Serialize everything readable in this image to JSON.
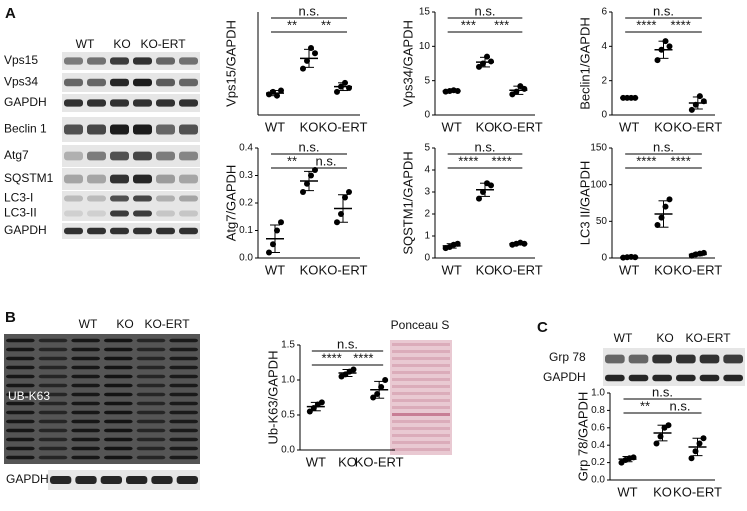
{
  "panel_labels": [
    "A",
    "B",
    "C"
  ],
  "blots": [
    {
      "lanes": [
        "WT",
        "KO",
        "KO-ERT"
      ],
      "rows": [
        "Vps15",
        "Vps34",
        "GAPDH",
        "Beclin 1",
        "Atg7",
        "SQSTM1",
        "LC3-I",
        "LC3-II",
        "GAPDH"
      ]
    },
    {
      "lanes": [
        "WT",
        "KO",
        "KO-ERT"
      ],
      "rows": [
        "UB-K63",
        "GAPDH"
      ]
    },
    {
      "lanes": [
        "WT",
        "KO",
        "KO-ERT"
      ],
      "rows": [
        "Grp 78",
        "GAPDH"
      ]
    }
  ],
  "ponceau_label": "Ponceau S",
  "chart_data": [
    {
      "type": "dot",
      "y_label": "Vps15/GAPDH",
      "categories": [
        "WT",
        "KO",
        "KO-ERT"
      ],
      "ylim": [
        0,
        4
      ],
      "values": [
        [
          0.8,
          0.9,
          0.75,
          0.95
        ],
        [
          1.8,
          2.1,
          2.6,
          2.4
        ],
        [
          0.9,
          1.1,
          1.25,
          1.05
        ]
      ],
      "means": [
        0.85,
        2.2,
        1.1
      ],
      "sd": [
        0.1,
        0.35,
        0.15
      ],
      "comparisons": [
        {
          "pair": [
            0,
            2
          ],
          "label": "n.s."
        },
        {
          "pair": [
            0,
            1
          ],
          "label": "**"
        },
        {
          "pair": [
            1,
            2
          ],
          "label": "**"
        }
      ]
    },
    {
      "type": "dot",
      "y_label": "Vps34/GAPDH",
      "categories": [
        "WT",
        "KO",
        "KO-ERT"
      ],
      "ylim": [
        0,
        15
      ],
      "yticks": [
        0,
        5,
        10,
        15
      ],
      "values": [
        [
          3.4,
          3.5,
          3.6,
          3.5
        ],
        [
          7.0,
          7.5,
          8.5,
          7.8
        ],
        [
          3.0,
          3.4,
          4.2,
          3.8
        ]
      ],
      "means": [
        3.5,
        7.7,
        3.6
      ],
      "sd": [
        0.1,
        0.7,
        0.6
      ],
      "comparisons": [
        {
          "pair": [
            0,
            2
          ],
          "label": "n.s."
        },
        {
          "pair": [
            0,
            1
          ],
          "label": "***"
        },
        {
          "pair": [
            1,
            2
          ],
          "label": "***"
        }
      ]
    },
    {
      "type": "dot",
      "y_label": "Beclin1/GAPDH",
      "categories": [
        "WT",
        "KO",
        "KO-ERT"
      ],
      "ylim": [
        0,
        6
      ],
      "yticks": [
        0,
        2,
        4,
        6
      ],
      "values": [
        [
          1.0,
          1.0,
          1.0,
          1.0
        ],
        [
          3.2,
          3.8,
          4.3,
          4.0
        ],
        [
          0.3,
          0.6,
          1.1,
          0.8
        ]
      ],
      "means": [
        1.0,
        3.8,
        0.7
      ],
      "sd": [
        0.02,
        0.5,
        0.35
      ],
      "comparisons": [
        {
          "pair": [
            0,
            2
          ],
          "label": "n.s."
        },
        {
          "pair": [
            0,
            1
          ],
          "label": "****"
        },
        {
          "pair": [
            1,
            2
          ],
          "label": "****"
        }
      ]
    },
    {
      "type": "dot",
      "y_label": "Atg7/GAPDH",
      "categories": [
        "WT",
        "KO",
        "KO-ERT"
      ],
      "ylim": [
        0,
        0.4
      ],
      "yticks": [
        {
          "value": 0,
          "label": "0.0"
        },
        0.1,
        0.2,
        0.3,
        0.4
      ],
      "values": [
        [
          0.02,
          0.05,
          0.1,
          0.13
        ],
        [
          0.24,
          0.27,
          0.3,
          0.32
        ],
        [
          0.13,
          0.16,
          0.22,
          0.24
        ]
      ],
      "means": [
        0.07,
        0.28,
        0.18
      ],
      "sd": [
        0.05,
        0.035,
        0.05
      ],
      "comparisons": [
        {
          "pair": [
            0,
            2
          ],
          "label": "n.s."
        },
        {
          "pair": [
            0,
            1
          ],
          "label": "**"
        },
        {
          "pair": [
            1,
            2
          ],
          "label": "n.s."
        }
      ]
    },
    {
      "type": "dot",
      "y_label": "SQSTM1/GAPDH",
      "categories": [
        "WT",
        "KO",
        "KO-ERT"
      ],
      "ylim": [
        0,
        5
      ],
      "yticks": [
        0,
        1,
        2,
        3,
        4,
        5
      ],
      "values": [
        [
          0.45,
          0.5,
          0.6,
          0.65
        ],
        [
          2.7,
          3.0,
          3.4,
          3.3
        ],
        [
          0.6,
          0.65,
          0.7,
          0.65
        ]
      ],
      "means": [
        0.55,
        3.1,
        0.65
      ],
      "sd": [
        0.1,
        0.3,
        0.05
      ],
      "comparisons": [
        {
          "pair": [
            0,
            2
          ],
          "label": "n.s."
        },
        {
          "pair": [
            0,
            1
          ],
          "label": "****"
        },
        {
          "pair": [
            1,
            2
          ],
          "label": "****"
        }
      ]
    },
    {
      "type": "dot",
      "y_label": "LC3 II/GAPDH",
      "categories": [
        "WT",
        "KO",
        "KO-ERT"
      ],
      "ylim": [
        0,
        150
      ],
      "yticks": [
        0,
        50,
        100,
        150
      ],
      "values": [
        [
          0.5,
          1,
          1.5,
          1
        ],
        [
          45,
          55,
          70,
          80
        ],
        [
          3,
          5,
          6,
          7
        ]
      ],
      "means": [
        1,
        60,
        5
      ],
      "sd": [
        0.5,
        18,
        2
      ],
      "comparisons": [
        {
          "pair": [
            0,
            2
          ],
          "label": "n.s."
        },
        {
          "pair": [
            0,
            1
          ],
          "label": "****"
        },
        {
          "pair": [
            1,
            2
          ],
          "label": "****"
        }
      ]
    },
    {
      "type": "dot",
      "y_label": "Ub-K63/GAPDH",
      "categories": [
        "WT",
        "KO",
        "KO-ERT"
      ],
      "ylim": [
        0,
        1.5
      ],
      "yticks": [
        {
          "value": 0,
          "label": "0.0"
        },
        0.5,
        {
          "value": 1,
          "label": "1.0"
        },
        1.5
      ],
      "values": [
        [
          0.55,
          0.6,
          0.65,
          0.68
        ],
        [
          1.05,
          1.08,
          1.12,
          1.15
        ],
        [
          0.75,
          0.8,
          0.9,
          1.0
        ]
      ],
      "means": [
        0.62,
        1.1,
        0.86
      ],
      "sd": [
        0.06,
        0.05,
        0.12
      ],
      "comparisons": [
        {
          "pair": [
            0,
            2
          ],
          "label": "n.s."
        },
        {
          "pair": [
            0,
            1
          ],
          "label": "****"
        },
        {
          "pair": [
            1,
            2
          ],
          "label": "****"
        }
      ]
    },
    {
      "type": "dot",
      "y_label": "Grp 78/GAPDH",
      "categories": [
        "WT",
        "KO",
        "KO-ERT"
      ],
      "ylim": [
        0,
        1.0
      ],
      "yticks": [
        {
          "value": 0,
          "label": "0.0"
        },
        0.2,
        0.4,
        0.6,
        0.8,
        {
          "value": 1,
          "label": "1.0"
        }
      ],
      "values": [
        [
          0.2,
          0.23,
          0.25,
          0.26
        ],
        [
          0.42,
          0.5,
          0.6,
          0.63
        ],
        [
          0.25,
          0.33,
          0.42,
          0.48
        ]
      ],
      "means": [
        0.24,
        0.54,
        0.38
      ],
      "sd": [
        0.03,
        0.09,
        0.1
      ],
      "comparisons": [
        {
          "pair": [
            0,
            2
          ],
          "label": "n.s."
        },
        {
          "pair": [
            0,
            1
          ],
          "label": "**"
        },
        {
          "pair": [
            1,
            2
          ],
          "label": "n.s."
        }
      ]
    }
  ]
}
